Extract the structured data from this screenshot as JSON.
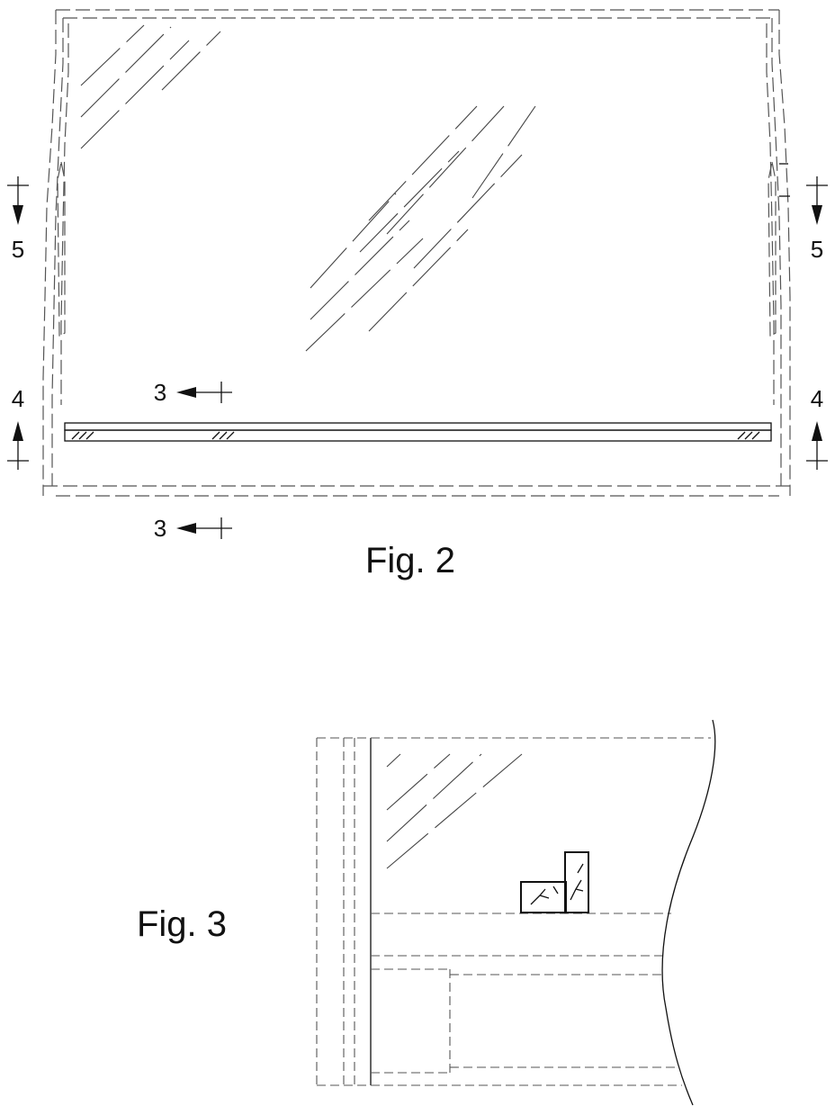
{
  "figures": [
    {
      "label": "Fig. 2",
      "section_marks": [
        {
          "id": "left-5",
          "label": "5"
        },
        {
          "id": "right-5",
          "label": "5"
        },
        {
          "id": "left-4",
          "label": "4"
        },
        {
          "id": "right-4",
          "label": "4"
        },
        {
          "id": "upper-3",
          "label": "3"
        },
        {
          "id": "lower-3",
          "label": "3"
        }
      ]
    },
    {
      "label": "Fig. 3"
    }
  ]
}
